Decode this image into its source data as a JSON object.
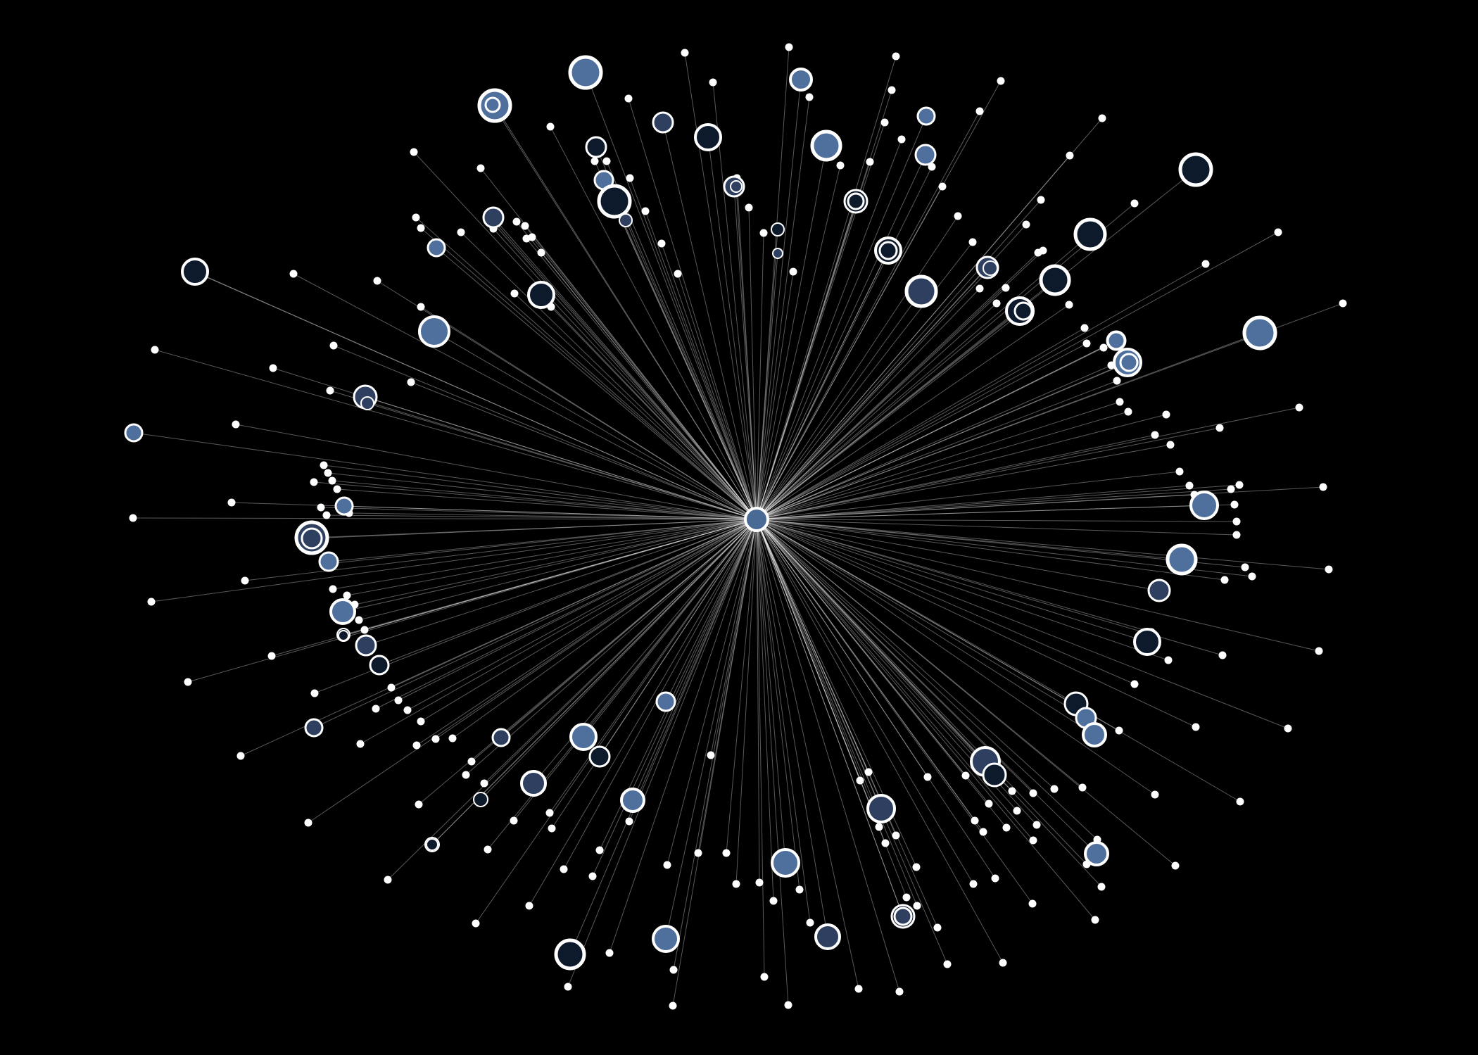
{
  "graph": {
    "background": "#000000",
    "edge_color": "#ffffff",
    "node_outline_color": "#ffffff",
    "hub": {
      "id": "hub",
      "fill": "#4a6a96"
    },
    "shade_palette": {
      "dark_navy": "#0d1a2c",
      "slate": "#2e3f60",
      "steel_blue": "#4f6f9d",
      "white": "#ffffff"
    },
    "node_counts": {
      "large_nodes": 78,
      "small_dots": 215
    }
  }
}
